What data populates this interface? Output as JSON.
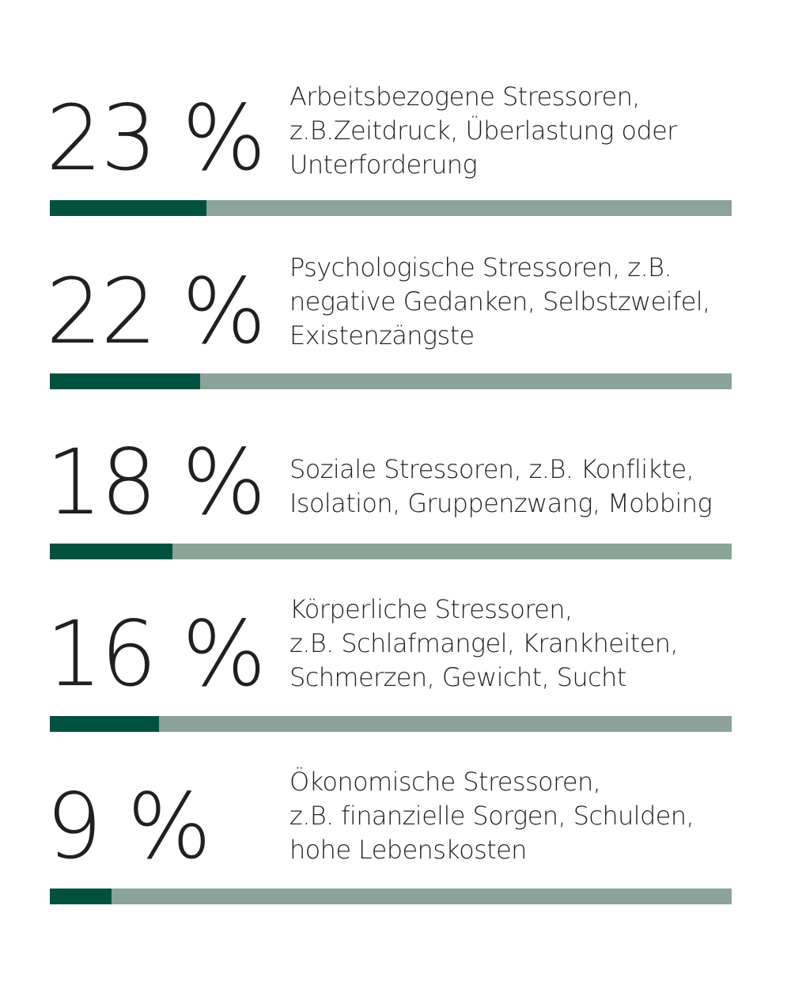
{
  "colors": {
    "fill": "#005140",
    "track": "#8ba398",
    "text": "#231f20"
  },
  "chart_data": {
    "type": "bar",
    "orientation": "horizontal",
    "unit": "%",
    "xlim": [
      0,
      100
    ],
    "categories": [
      "Arbeitsbezogene Stressoren, z.B.Zeitdruck, Überlastung oder Unterforderung",
      "Psychologische Stressoren, z.B. negative Gedanken, Selbstzweifel, Existenzängste",
      "Soziale Stressoren, z.B. Konflikte, Isolation, Gruppenzwang, Mobbing",
      "Körperliche Stressoren, z.B. Schlafmangel, Krankheiten, Schmerzen, Gewicht, Sucht",
      "Ökonomische Stressoren, z.B. finanzielle Sorgen, Schulden, hohe Lebenskosten"
    ],
    "values": [
      23,
      22,
      18,
      16,
      9
    ],
    "items": [
      {
        "label": "23 %",
        "value": 23,
        "lines": [
          "Arbeitsbezogene Stressoren,",
          "z.B.Zeitdruck, Überlastung oder",
          "Unterforderung"
        ]
      },
      {
        "label": "22 %",
        "value": 22,
        "lines": [
          "Psychologische Stressoren, z.B.",
          "negative Gedanken, Selbstzweifel,",
          "Existenzängste"
        ]
      },
      {
        "label": "18 %",
        "value": 18,
        "lines": [
          "Soziale Stressoren, z.B. Konflikte,",
          "Isolation, Gruppenzwang, Mobbing"
        ]
      },
      {
        "label": "16 %",
        "value": 16,
        "lines": [
          "Körperliche Stressoren,",
          "z.B. Schlafmangel, Krankheiten,",
          "Schmerzen, Gewicht, Sucht"
        ]
      },
      {
        "label": "9 %",
        "value": 9,
        "lines": [
          "Ökonomische Stressoren,",
          "z.B. finanzielle Sorgen, Schulden,",
          "hohe Lebenskosten"
        ]
      }
    ]
  }
}
